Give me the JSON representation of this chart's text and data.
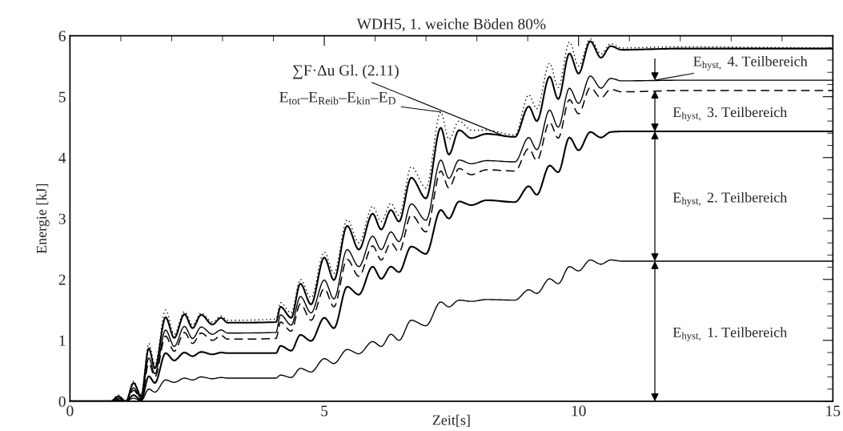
{
  "chart_data": {
    "type": "line",
    "title": "WDH5, 1. weiche Böden 80%",
    "xlabel": "Zeit[s]",
    "ylabel": "Energie [kJ]",
    "x": [
      0,
      0.8,
      0.95,
      1.1,
      1.25,
      1.4,
      1.55,
      1.67,
      1.88,
      2.05,
      2.25,
      2.41,
      2.58,
      2.8,
      2.97,
      3.1,
      4.05,
      4.14,
      4.35,
      4.53,
      4.74,
      5.0,
      5.19,
      5.45,
      5.68,
      5.95,
      6.12,
      6.31,
      6.47,
      6.71,
      7.0,
      7.29,
      7.45,
      7.65,
      7.89,
      8.19,
      8.75,
      9.02,
      9.18,
      9.43,
      9.6,
      9.82,
      10.0,
      10.23,
      10.44,
      10.63,
      10.85,
      12,
      15
    ],
    "series": [
      {
        "color": "#000000",
        "line_style": "dotted",
        "values": [
          0,
          0,
          0.1,
          0,
          0.33,
          0.1,
          0.95,
          0.6,
          1.5,
          1.1,
          1.47,
          1.25,
          1.45,
          1.3,
          1.4,
          1.33,
          1.35,
          1.62,
          1.45,
          2.0,
          1.7,
          2.45,
          2.1,
          2.98,
          2.6,
          3.2,
          2.95,
          3.25,
          3.05,
          3.85,
          3.5,
          4.75,
          4.3,
          4.6,
          4.45,
          4.45,
          4.37,
          5.03,
          4.8,
          5.55,
          5.15,
          5.9,
          5.5,
          5.95,
          5.7,
          5.87,
          5.8,
          5.82,
          5.8
        ]
      },
      {
        "color": "#000000",
        "line_style": "solid",
        "values": [
          0,
          0,
          0.08,
          0,
          0.3,
          0.08,
          0.87,
          0.54,
          1.38,
          1.04,
          1.43,
          1.2,
          1.42,
          1.26,
          1.37,
          1.29,
          1.3,
          1.55,
          1.37,
          1.93,
          1.59,
          2.36,
          1.99,
          2.88,
          2.49,
          3.08,
          2.82,
          3.14,
          2.95,
          3.67,
          3.33,
          4.49,
          4.05,
          4.45,
          4.32,
          4.39,
          4.34,
          4.84,
          4.6,
          5.33,
          4.96,
          5.71,
          5.38,
          5.91,
          5.64,
          5.83,
          5.77,
          5.79,
          5.79
        ]
      },
      {
        "color": "#000000",
        "line_style": "solid",
        "values": [
          0,
          0,
          0.05,
          0,
          0.22,
          0.05,
          0.71,
          0.45,
          1.17,
          0.9,
          1.23,
          1.03,
          1.22,
          1.1,
          1.17,
          1.12,
          1.13,
          1.42,
          1.25,
          1.72,
          1.45,
          1.99,
          1.68,
          2.49,
          2.21,
          2.71,
          2.49,
          2.78,
          2.62,
          3.24,
          2.97,
          3.96,
          3.66,
          3.96,
          3.9,
          3.95,
          3.93,
          4.33,
          4.13,
          4.78,
          4.5,
          5.14,
          4.89,
          5.34,
          5.14,
          5.3,
          5.26,
          5.27,
          5.27
        ]
      },
      {
        "color": "#000000",
        "line_style": "dashed",
        "values": [
          0,
          0,
          0.04,
          0,
          0.18,
          0.04,
          0.62,
          0.4,
          1.07,
          0.82,
          1.13,
          0.95,
          1.12,
          1.0,
          1.08,
          1.02,
          1.03,
          1.3,
          1.15,
          1.6,
          1.33,
          1.85,
          1.55,
          2.33,
          2.05,
          2.55,
          2.32,
          2.6,
          2.45,
          3.06,
          2.78,
          3.78,
          3.5,
          3.82,
          3.72,
          3.8,
          3.78,
          4.15,
          3.95,
          4.58,
          4.32,
          4.95,
          4.72,
          5.15,
          4.98,
          5.12,
          5.08,
          5.1,
          5.1
        ]
      },
      {
        "color": "#000000",
        "line_style": "solid",
        "values": [
          0,
          0,
          0.02,
          0,
          0.1,
          0.02,
          0.41,
          0.3,
          0.79,
          0.67,
          0.8,
          0.74,
          0.81,
          0.77,
          0.8,
          0.79,
          0.79,
          0.91,
          0.83,
          1.09,
          0.99,
          1.37,
          1.2,
          1.88,
          1.75,
          2.21,
          2.01,
          2.21,
          2.12,
          2.54,
          2.42,
          3.14,
          3.0,
          3.28,
          3.22,
          3.3,
          3.27,
          3.53,
          3.39,
          3.87,
          3.76,
          4.33,
          4.12,
          4.42,
          4.33,
          4.42,
          4.43,
          4.43,
          4.43
        ]
      },
      {
        "color": "#000000",
        "line_style": "solid",
        "values": [
          0,
          0,
          0.01,
          0,
          0.05,
          0.01,
          0.2,
          0.15,
          0.35,
          0.31,
          0.38,
          0.35,
          0.4,
          0.37,
          0.39,
          0.38,
          0.38,
          0.43,
          0.39,
          0.54,
          0.48,
          0.7,
          0.62,
          0.85,
          0.78,
          0.98,
          0.9,
          1.1,
          1.0,
          1.33,
          1.24,
          1.63,
          1.55,
          1.66,
          1.64,
          1.67,
          1.66,
          1.83,
          1.77,
          2.01,
          1.93,
          2.21,
          2.14,
          2.32,
          2.25,
          2.32,
          2.3,
          2.3,
          2.3
        ]
      }
    ],
    "annotations": [
      {
        "text": "E$_{tot}$–E$_{Reib}$–E$_{kin}$–E$_{D}$",
        "x": 7.29,
        "y": 4.75
      },
      {
        "text": "∑F·Δu Gl. (2.11)",
        "x": 8.55,
        "y": 4.35
      },
      "E$_{hyst,}$ 1. Teilbereich",
      "E$_{hyst,}$ 2. Teilbereich",
      "E$_{hyst,}$ 3. Teilbereich",
      {
        "text": "E$_{hyst,}$ 4. Teilbereich",
        "x": 11.5,
        "y": 5.27
      }
    ],
    "xlim": [
      0,
      15
    ],
    "ylim": [
      0,
      6
    ],
    "xticks": [
      0,
      5,
      10,
      15
    ],
    "yticks": [
      0,
      1,
      2,
      3,
      4,
      5,
      6
    ],
    "grid": false,
    "legend": false
  }
}
